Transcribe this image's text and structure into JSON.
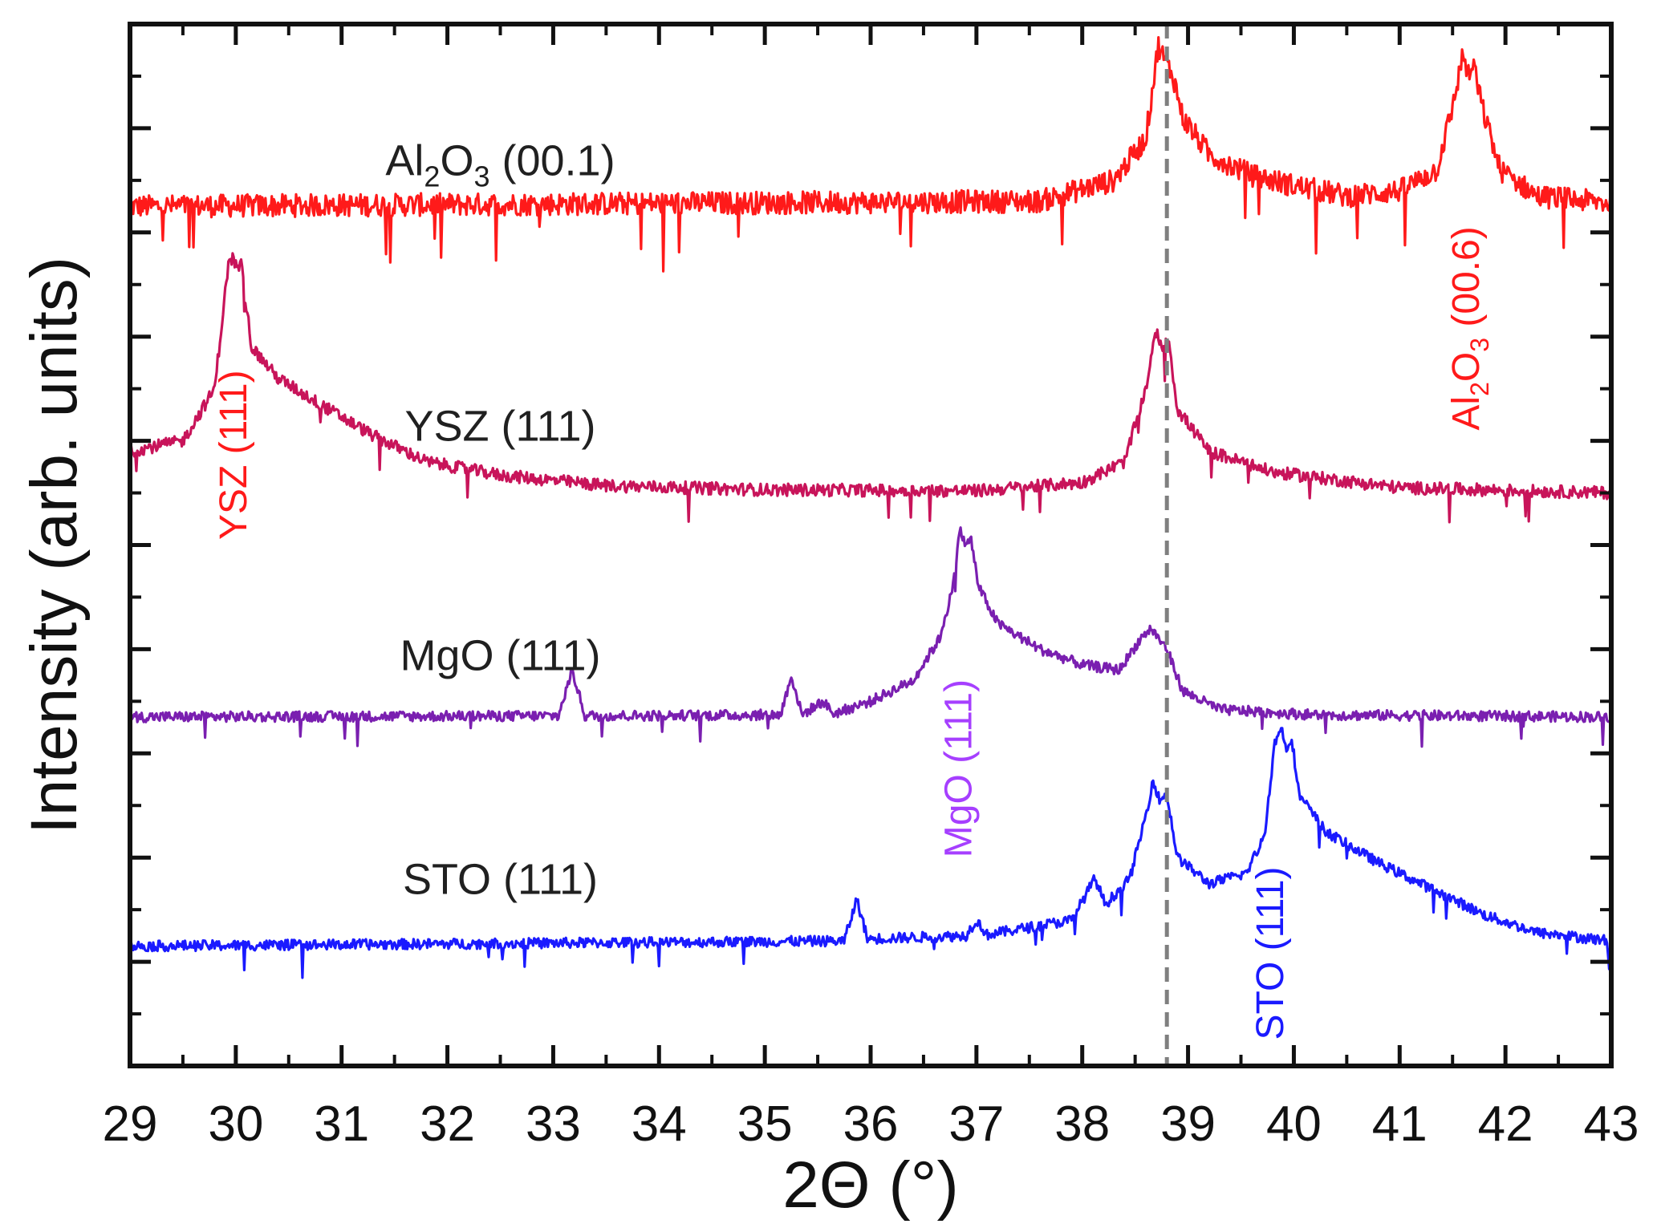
{
  "chart_data": {
    "type": "line",
    "title": "",
    "xlabel": "2Θ (°)",
    "ylabel": "Intensity (arb. units)",
    "xlim": [
      29,
      43
    ],
    "ylim": [
      0,
      10
    ],
    "x_ticks": [
      29,
      30,
      31,
      32,
      33,
      34,
      35,
      36,
      37,
      38,
      39,
      40,
      41,
      42,
      43
    ],
    "x_tick_labels": [
      "29",
      "30",
      "31",
      "32",
      "33",
      "34",
      "35",
      "36",
      "37",
      "38",
      "39",
      "40",
      "41",
      "42",
      "43"
    ],
    "reference_line": {
      "x": 38.8,
      "style": "dashed",
      "color": "#7f7f7f"
    },
    "series": [
      {
        "name": "Al2O3 (00.1)",
        "label_main": "Al",
        "label_sub1": "2",
        "label_mid": "O",
        "label_sub2": "3",
        "label_rest": " (00.1)",
        "color": "#ff1a1a",
        "baseline": 8.25,
        "noise": 0.22,
        "points": [
          [
            29,
            8.25
          ],
          [
            37.6,
            8.3
          ],
          [
            38.3,
            8.5
          ],
          [
            38.6,
            8.9
          ],
          [
            38.72,
            9.8
          ],
          [
            38.78,
            9.65
          ],
          [
            38.86,
            9.5
          ],
          [
            38.95,
            9.1
          ],
          [
            39.2,
            8.75
          ],
          [
            39.6,
            8.55
          ],
          [
            40.0,
            8.45
          ],
          [
            40.5,
            8.35
          ],
          [
            41.0,
            8.4
          ],
          [
            41.35,
            8.6
          ],
          [
            41.5,
            9.2
          ],
          [
            41.6,
            9.72
          ],
          [
            41.65,
            9.5
          ],
          [
            41.7,
            9.6
          ],
          [
            41.78,
            9.2
          ],
          [
            41.95,
            8.6
          ],
          [
            42.3,
            8.35
          ],
          [
            43,
            8.28
          ]
        ]
      },
      {
        "name": "YSZ (111)",
        "color": "#c8145a",
        "baseline": 5.5,
        "noise": 0.12,
        "points": [
          [
            29,
            5.9
          ],
          [
            29.5,
            6.0
          ],
          [
            29.8,
            6.5
          ],
          [
            29.93,
            7.7
          ],
          [
            29.97,
            7.75
          ],
          [
            30.02,
            7.65
          ],
          [
            30.05,
            7.7
          ],
          [
            30.15,
            6.9
          ],
          [
            30.4,
            6.6
          ],
          [
            30.8,
            6.35
          ],
          [
            31.3,
            6.05
          ],
          [
            31.8,
            5.8
          ],
          [
            32.5,
            5.67
          ],
          [
            33.5,
            5.57
          ],
          [
            35,
            5.53
          ],
          [
            37,
            5.52
          ],
          [
            38,
            5.6
          ],
          [
            38.4,
            5.8
          ],
          [
            38.6,
            6.5
          ],
          [
            38.7,
            7.05
          ],
          [
            38.76,
            6.9
          ],
          [
            38.82,
            6.95
          ],
          [
            38.9,
            6.3
          ],
          [
            39.2,
            5.9
          ],
          [
            39.8,
            5.7
          ],
          [
            41,
            5.55
          ],
          [
            43,
            5.5
          ]
        ]
      },
      {
        "name": "MgO (111)",
        "color": "#7a1fb0",
        "baseline": 3.35,
        "noise": 0.1,
        "points": [
          [
            29,
            3.35
          ],
          [
            33.05,
            3.36
          ],
          [
            33.18,
            3.8
          ],
          [
            33.3,
            3.36
          ],
          [
            35.15,
            3.37
          ],
          [
            35.25,
            3.75
          ],
          [
            35.35,
            3.37
          ],
          [
            35.55,
            3.5
          ],
          [
            35.65,
            3.38
          ],
          [
            36.0,
            3.5
          ],
          [
            36.4,
            3.7
          ],
          [
            36.65,
            4.1
          ],
          [
            36.78,
            4.6
          ],
          [
            36.84,
            5.15
          ],
          [
            36.9,
            5.0
          ],
          [
            36.95,
            5.05
          ],
          [
            37.02,
            4.6
          ],
          [
            37.2,
            4.25
          ],
          [
            37.6,
            4.0
          ],
          [
            38.0,
            3.85
          ],
          [
            38.35,
            3.8
          ],
          [
            38.55,
            4.1
          ],
          [
            38.65,
            4.2
          ],
          [
            38.8,
            4.0
          ],
          [
            38.95,
            3.6
          ],
          [
            39.3,
            3.42
          ],
          [
            40.2,
            3.37
          ],
          [
            43,
            3.35
          ]
        ]
      },
      {
        "name": "STO (111)",
        "color": "#1a1aff",
        "baseline": 1.15,
        "noise": 0.1,
        "points": [
          [
            29,
            1.15
          ],
          [
            35.75,
            1.2
          ],
          [
            35.87,
            1.6
          ],
          [
            35.97,
            1.22
          ],
          [
            36.9,
            1.25
          ],
          [
            37.0,
            1.4
          ],
          [
            37.1,
            1.26
          ],
          [
            37.9,
            1.4
          ],
          [
            38.12,
            1.8
          ],
          [
            38.22,
            1.55
          ],
          [
            38.45,
            1.8
          ],
          [
            38.6,
            2.4
          ],
          [
            38.67,
            2.75
          ],
          [
            38.73,
            2.55
          ],
          [
            38.8,
            2.6
          ],
          [
            38.9,
            2.0
          ],
          [
            39.2,
            1.75
          ],
          [
            39.55,
            1.85
          ],
          [
            39.72,
            2.2
          ],
          [
            39.82,
            3.1
          ],
          [
            39.88,
            3.25
          ],
          [
            39.93,
            3.05
          ],
          [
            39.98,
            3.15
          ],
          [
            40.05,
            2.6
          ],
          [
            40.3,
            2.25
          ],
          [
            40.8,
            1.95
          ],
          [
            41.3,
            1.7
          ],
          [
            41.8,
            1.45
          ],
          [
            42.3,
            1.28
          ],
          [
            43,
            1.2
          ]
        ]
      }
    ],
    "series_labels": [
      {
        "text": "YSZ (111)",
        "color": "#202020",
        "x": 32.5,
        "y": 6.0
      },
      {
        "text": "MgO (111)",
        "color": "#202020",
        "x": 32.5,
        "y": 3.8
      },
      {
        "text": "STO (111)",
        "color": "#202020",
        "x": 32.5,
        "y": 1.65
      }
    ],
    "peak_annotations": [
      {
        "text": "YSZ (111)",
        "color": "#ff1a1a",
        "x": 30.1,
        "y": 5.05
      },
      {
        "text": "MgO (111)",
        "color": "#a63fff",
        "x": 36.95,
        "y": 2.0
      },
      {
        "text": "STO (111)",
        "color": "#1a1aff",
        "x": 39.9,
        "y": 0.25
      }
    ],
    "al2o3_00_6": {
      "main": "Al",
      "sub1": "2",
      "mid": "O",
      "sub2": "3",
      "rest": " (00.6)",
      "color": "#ff1a1a",
      "x": 41.75,
      "y": 6.1
    },
    "al2o3_00_1_pos": {
      "x": 32.5,
      "y": 8.55
    }
  }
}
